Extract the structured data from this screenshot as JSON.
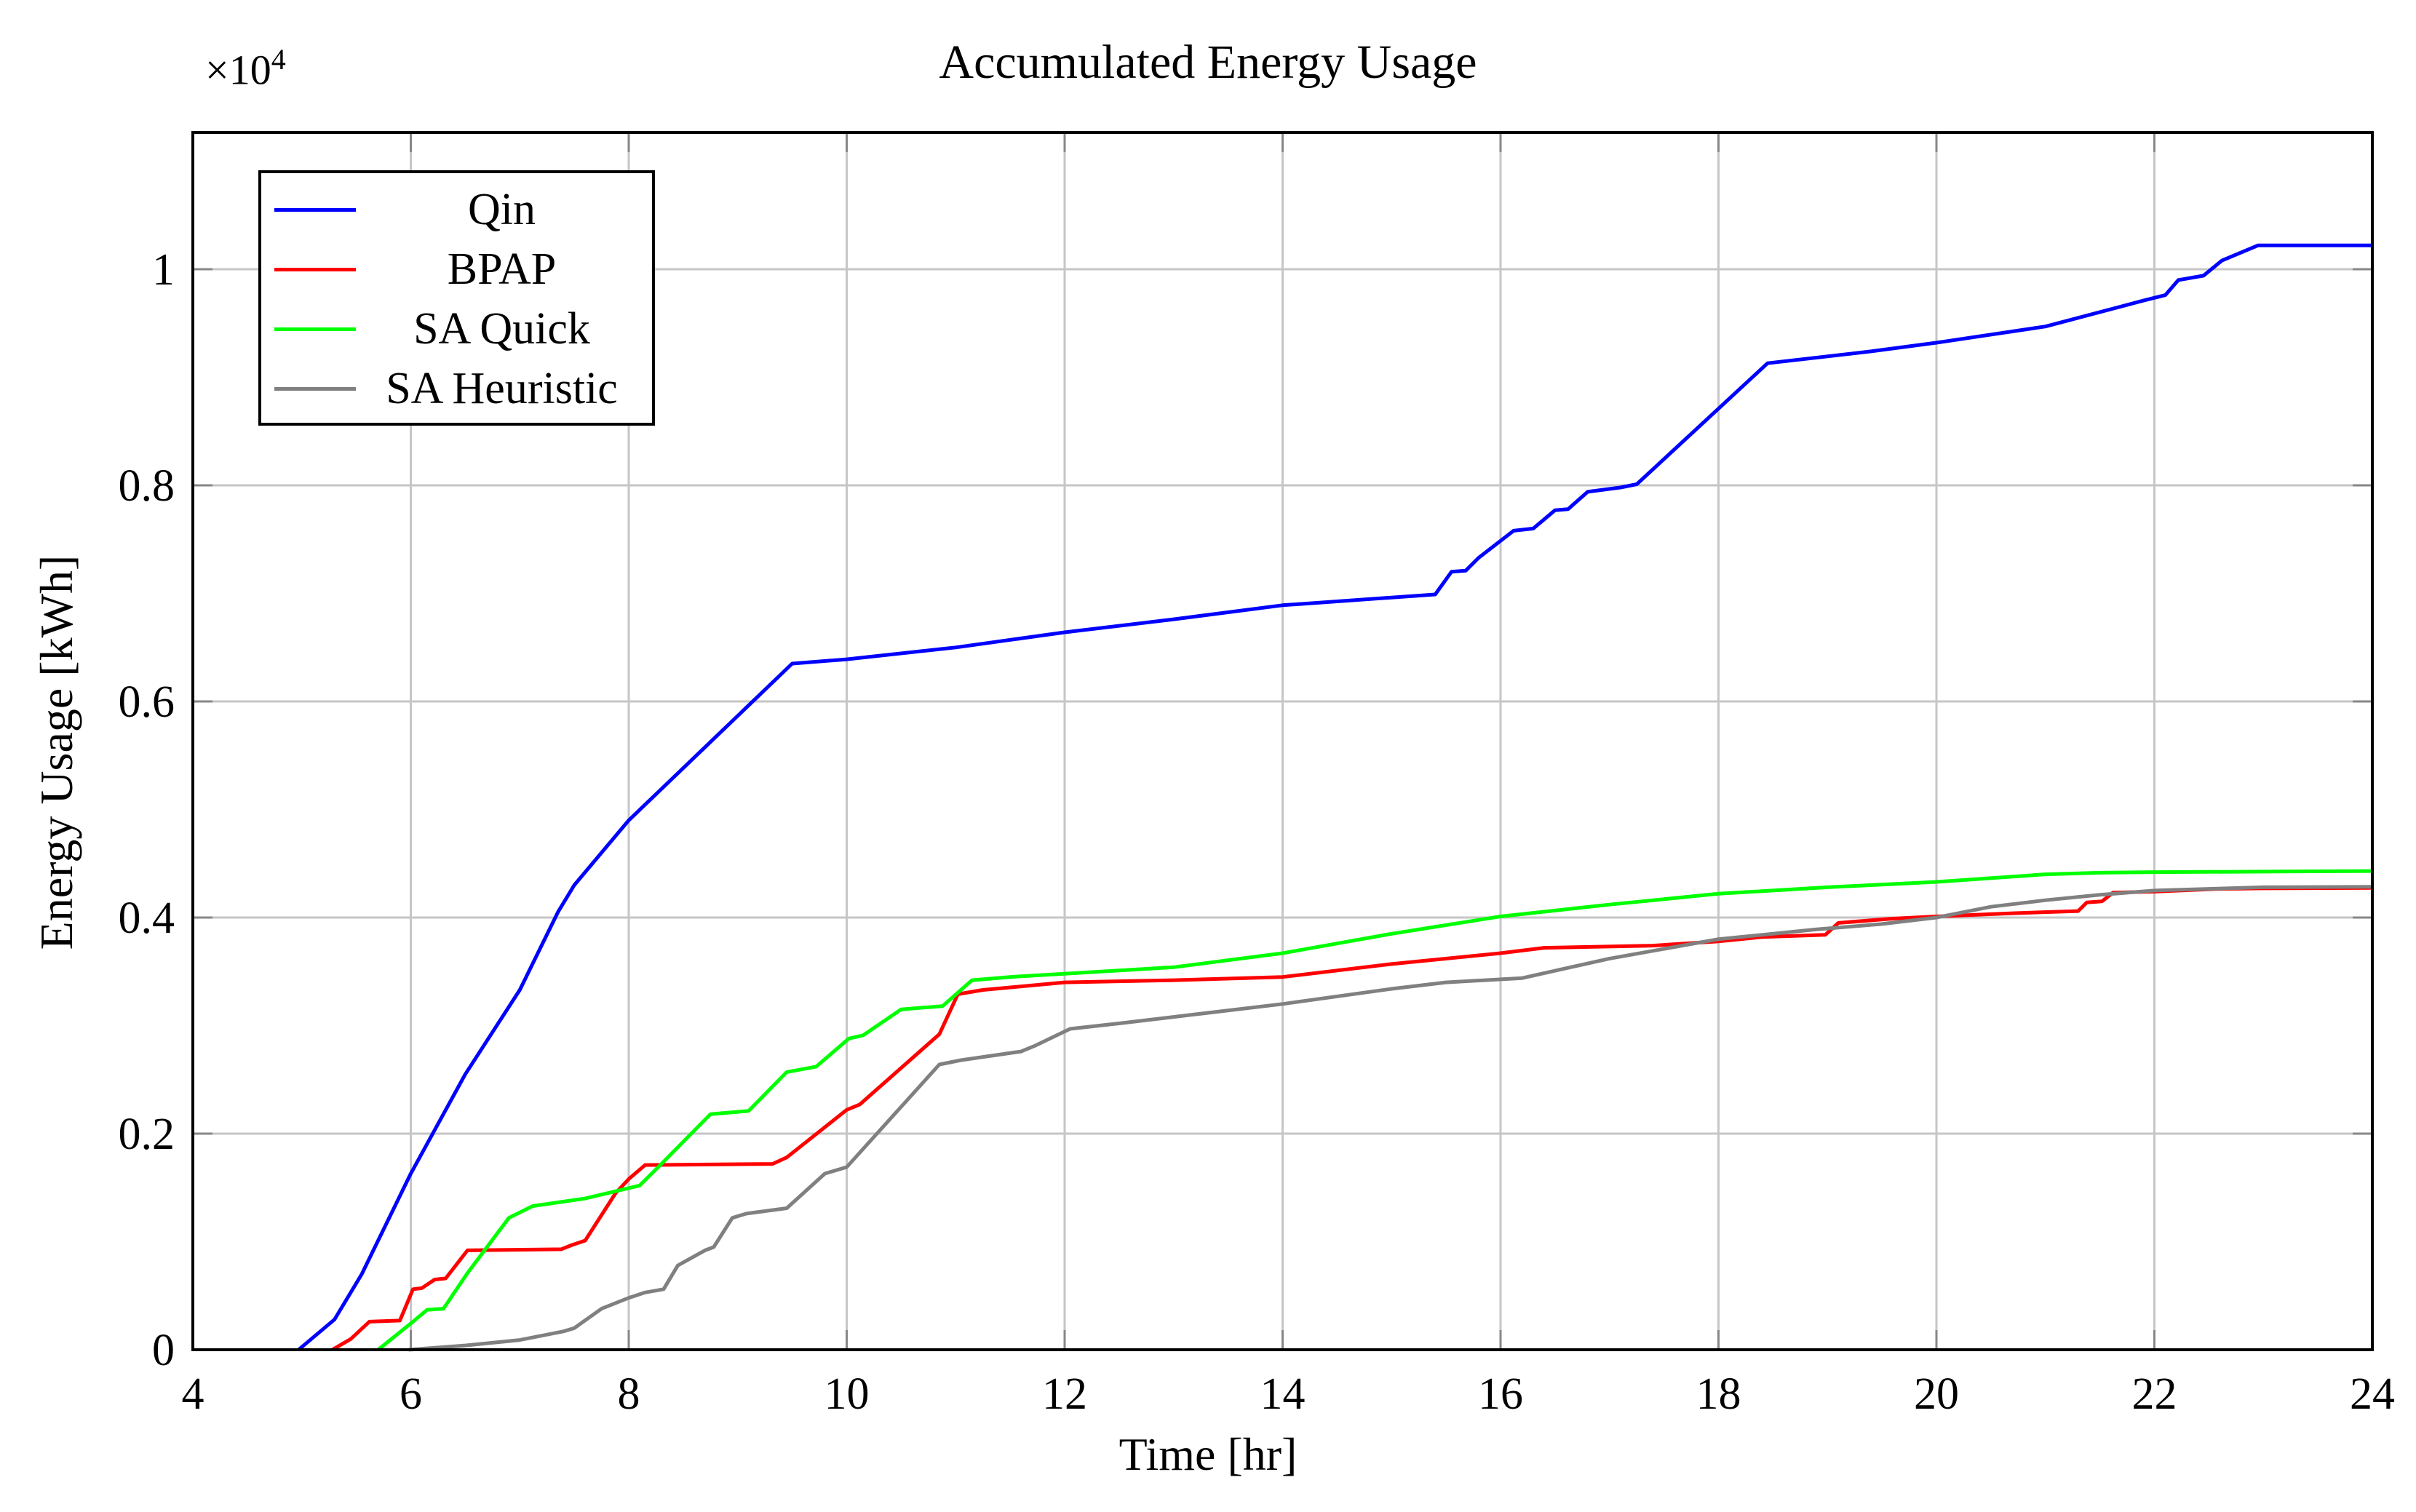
{
  "chart": {
    "title": "Accumulated Energy Usage"
  },
  "axes": {
    "x": {
      "label": "Time [hr]",
      "min": 4,
      "max": 24,
      "ticks": [
        "4",
        "6",
        "8",
        "10",
        "12",
        "14",
        "16",
        "18",
        "20",
        "22",
        "24"
      ],
      "tick_values": [
        4,
        6,
        8,
        10,
        12,
        14,
        16,
        18,
        20,
        22,
        24
      ],
      "grid_values": [
        6,
        8,
        10,
        12,
        14,
        16,
        18,
        20,
        22
      ]
    },
    "y": {
      "label": "Energy Usage [kWh]",
      "min": 0,
      "max": 1.1266,
      "multiplier_base": "×10",
      "multiplier_exp": "4",
      "ticks": [
        "0",
        "0.2",
        "0.4",
        "0.6",
        "0.8",
        "1"
      ],
      "tick_values": [
        0,
        0.2,
        0.4,
        0.6,
        0.8,
        1
      ],
      "grid_values": [
        0.2,
        0.4,
        0.6,
        0.8,
        1
      ]
    }
  },
  "legend": {
    "entries": [
      {
        "label": "Qin",
        "color": "#0000ff"
      },
      {
        "label": "BPAP",
        "color": "#ff0000"
      },
      {
        "label": "SA Quick",
        "color": "#00ff00"
      },
      {
        "label": "SA Heuristic",
        "color": "#808080"
      }
    ],
    "position": "top-left"
  },
  "style": {
    "grid_color": "#c6c6c6",
    "tick_color": "#878787",
    "frame_color": "#000000",
    "background": "#ffffff",
    "line_width": 5,
    "grid_on": true
  },
  "chart_data": {
    "type": "line",
    "title": "Accumulated Energy Usage",
    "xlabel": "Time [hr]",
    "ylabel": "Energy Usage [kWh]",
    "xlim": [
      4,
      24
    ],
    "ylim": [
      0,
      11266
    ],
    "y_scale": 10000,
    "y_axis_display": "values shown divided by 10^4",
    "series": [
      {
        "name": "Qin",
        "color": "#0000ff",
        "points": [
          [
            4.97,
            0
          ],
          [
            5.3,
            280
          ],
          [
            5.55,
            700
          ],
          [
            6,
            1630
          ],
          [
            6.5,
            2550
          ],
          [
            7,
            3330
          ],
          [
            7.35,
            4050
          ],
          [
            7.5,
            4300
          ],
          [
            7.85,
            4720
          ],
          [
            8,
            4900
          ],
          [
            9.5,
            6350
          ],
          [
            10,
            6390
          ],
          [
            11,
            6500
          ],
          [
            12,
            6640
          ],
          [
            13,
            6760
          ],
          [
            14,
            6890
          ],
          [
            15.4,
            6990
          ],
          [
            15.55,
            7200
          ],
          [
            15.68,
            7210
          ],
          [
            15.8,
            7330
          ],
          [
            16.12,
            7580
          ],
          [
            16.3,
            7600
          ],
          [
            16.5,
            7770
          ],
          [
            16.62,
            7780
          ],
          [
            16.8,
            7940
          ],
          [
            17.1,
            7980
          ],
          [
            17.25,
            8010
          ],
          [
            18.45,
            9130
          ],
          [
            19.4,
            9240
          ],
          [
            20,
            9320
          ],
          [
            21,
            9470
          ],
          [
            21.9,
            9710
          ],
          [
            22.1,
            9760
          ],
          [
            22.22,
            9900
          ],
          [
            22.45,
            9940
          ],
          [
            22.62,
            10080
          ],
          [
            22.95,
            10220
          ],
          [
            24,
            10220
          ]
        ]
      },
      {
        "name": "BPAP",
        "color": "#ff0000",
        "points": [
          [
            5.28,
            0
          ],
          [
            5.45,
            100
          ],
          [
            5.62,
            260
          ],
          [
            5.9,
            270
          ],
          [
            6.02,
            560
          ],
          [
            6.1,
            570
          ],
          [
            6.22,
            650
          ],
          [
            6.32,
            660
          ],
          [
            6.52,
            920
          ],
          [
            7.38,
            930
          ],
          [
            7.48,
            970
          ],
          [
            7.6,
            1010
          ],
          [
            7.88,
            1450
          ],
          [
            8,
            1580
          ],
          [
            8.15,
            1710
          ],
          [
            9.32,
            1720
          ],
          [
            9.45,
            1780
          ],
          [
            10,
            2220
          ],
          [
            10.12,
            2270
          ],
          [
            10.85,
            2920
          ],
          [
            11.02,
            3290
          ],
          [
            11.25,
            3330
          ],
          [
            12,
            3400
          ],
          [
            13,
            3420
          ],
          [
            14,
            3450
          ],
          [
            15,
            3570
          ],
          [
            16,
            3670
          ],
          [
            16.4,
            3720
          ],
          [
            17.4,
            3740
          ],
          [
            18,
            3780
          ],
          [
            18.4,
            3820
          ],
          [
            18.98,
            3840
          ],
          [
            19.1,
            3950
          ],
          [
            19.6,
            3990
          ],
          [
            20,
            4010
          ],
          [
            20.7,
            4040
          ],
          [
            21.3,
            4060
          ],
          [
            21.38,
            4140
          ],
          [
            21.52,
            4150
          ],
          [
            21.62,
            4230
          ],
          [
            22,
            4240
          ],
          [
            22.6,
            4265
          ],
          [
            23,
            4270
          ],
          [
            24,
            4275
          ]
        ]
      },
      {
        "name": "SA Quick",
        "color": "#00ff00",
        "points": [
          [
            5.7,
            0
          ],
          [
            6.02,
            260
          ],
          [
            6.15,
            370
          ],
          [
            6.3,
            380
          ],
          [
            6.52,
            710
          ],
          [
            6.9,
            1220
          ],
          [
            7.02,
            1280
          ],
          [
            7.12,
            1330
          ],
          [
            7.6,
            1400
          ],
          [
            8.1,
            1520
          ],
          [
            8.28,
            1700
          ],
          [
            8.75,
            2180
          ],
          [
            9.1,
            2210
          ],
          [
            9.45,
            2570
          ],
          [
            9.72,
            2620
          ],
          [
            10.02,
            2880
          ],
          [
            10.15,
            2910
          ],
          [
            10.5,
            3150
          ],
          [
            10.88,
            3180
          ],
          [
            11.15,
            3420
          ],
          [
            11.5,
            3450
          ],
          [
            12,
            3480
          ],
          [
            13,
            3540
          ],
          [
            14,
            3670
          ],
          [
            15,
            3850
          ],
          [
            16,
            4010
          ],
          [
            17,
            4120
          ],
          [
            18,
            4220
          ],
          [
            19,
            4280
          ],
          [
            20,
            4330
          ],
          [
            21,
            4400
          ],
          [
            21.5,
            4415
          ],
          [
            22,
            4420
          ],
          [
            23,
            4425
          ],
          [
            24,
            4430
          ]
        ]
      },
      {
        "name": "SA Heuristic",
        "color": "#808080",
        "points": [
          [
            5.98,
            0
          ],
          [
            6.5,
            40
          ],
          [
            7,
            90
          ],
          [
            7.4,
            170
          ],
          [
            7.5,
            200
          ],
          [
            7.75,
            380
          ],
          [
            8,
            480
          ],
          [
            8.15,
            530
          ],
          [
            8.32,
            560
          ],
          [
            8.45,
            780
          ],
          [
            8.7,
            920
          ],
          [
            8.78,
            950
          ],
          [
            8.95,
            1220
          ],
          [
            9.08,
            1260
          ],
          [
            9.45,
            1310
          ],
          [
            9.8,
            1630
          ],
          [
            10,
            1690
          ],
          [
            10.85,
            2640
          ],
          [
            11.05,
            2680
          ],
          [
            11.6,
            2760
          ],
          [
            11.72,
            2810
          ],
          [
            12.05,
            2970
          ],
          [
            12.5,
            3020
          ],
          [
            13,
            3080
          ],
          [
            14,
            3200
          ],
          [
            15,
            3340
          ],
          [
            15.5,
            3400
          ],
          [
            16.2,
            3440
          ],
          [
            17,
            3620
          ],
          [
            18,
            3800
          ],
          [
            18.9,
            3890
          ],
          [
            19.5,
            3940
          ],
          [
            20,
            4000
          ],
          [
            20.5,
            4100
          ],
          [
            21,
            4160
          ],
          [
            21.5,
            4210
          ],
          [
            22,
            4250
          ],
          [
            22.5,
            4265
          ],
          [
            23,
            4280
          ],
          [
            24,
            4285
          ]
        ]
      }
    ]
  }
}
